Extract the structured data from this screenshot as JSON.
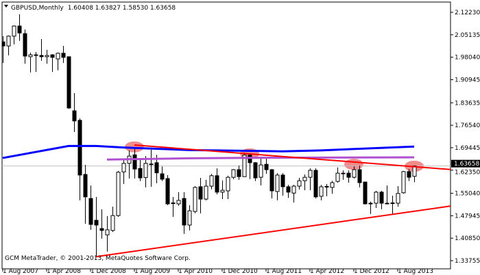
{
  "header": {
    "menu_icon": "triangle-down-icon",
    "symbol": "GBPUSD,Monthly",
    "ohlc_text": "1.60408 1.63827 1.58530 1.63658"
  },
  "watermark": "GCM MetaTrader, © 2001-2013, MetaQuotes Software Corp.",
  "colors": {
    "bull_body": "#ffffff",
    "bear_body": "#000000",
    "ma_line": "#0000ff",
    "level_line": "#b050d0",
    "trend_lines": "#ff0000",
    "highlight": "#f08080",
    "current_price_line": "#c0c0c0",
    "current_price_box": "#000000"
  },
  "chart_data": {
    "type": "candlestick",
    "symbol": "GBPUSD",
    "timeframe": "Monthly",
    "ylim": [
      1.33755,
      2.1223
    ],
    "y_ticks": [
      "2.12230",
      "2.05135",
      "1.98040",
      "1.90945",
      "1.83635",
      "1.76540",
      "1.69445",
      "1.62350",
      "1.55040",
      "1.47945",
      "1.40850",
      "1.33755"
    ],
    "x_ticks": [
      {
        "date": "2007-08",
        "label": "1 Aug 2007"
      },
      {
        "date": "2008-04",
        "label": "1 Apr 2008"
      },
      {
        "date": "2008-12",
        "label": "1 Dec 2008"
      },
      {
        "date": "2009-08",
        "label": "1 Aug 2009"
      },
      {
        "date": "2010-04",
        "label": "1 Apr 2010"
      },
      {
        "date": "2010-12",
        "label": "1 Dec 2010"
      },
      {
        "date": "2011-08",
        "label": "1 Aug 2011"
      },
      {
        "date": "2012-04",
        "label": "1 Apr 2012"
      },
      {
        "date": "2012-12",
        "label": "1 Dec 2012"
      },
      {
        "date": "2013-08",
        "label": "1 Aug 2013"
      }
    ],
    "current_price": "1.63658",
    "candles": [
      [
        "2007-08",
        2.029,
        2.047,
        1.962,
        2.016
      ],
      [
        "2007-09",
        2.016,
        2.049,
        1.986,
        2.047
      ],
      [
        "2007-10",
        2.047,
        2.081,
        2.021,
        2.079
      ],
      [
        "2007-11",
        2.079,
        2.116,
        2.032,
        2.057
      ],
      [
        "2007-12",
        2.055,
        2.068,
        1.96,
        1.984
      ],
      [
        "2008-01",
        1.982,
        1.995,
        1.932,
        1.988
      ],
      [
        "2008-02",
        1.987,
        1.997,
        1.934,
        1.988
      ],
      [
        "2008-03",
        1.986,
        2.038,
        1.969,
        1.982
      ],
      [
        "2008-04",
        1.982,
        2.004,
        1.96,
        1.986
      ],
      [
        "2008-05",
        1.988,
        1.99,
        1.934,
        1.98
      ],
      [
        "2008-06",
        1.975,
        1.995,
        1.939,
        1.993
      ],
      [
        "2008-07",
        1.993,
        2.016,
        1.962,
        1.98
      ],
      [
        "2008-08",
        1.982,
        1.982,
        1.817,
        1.82
      ],
      [
        "2008-09",
        1.811,
        1.867,
        1.744,
        1.779
      ],
      [
        "2008-10",
        1.781,
        1.787,
        1.528,
        1.608
      ],
      [
        "2008-11",
        1.61,
        1.64,
        1.454,
        1.539
      ],
      [
        "2008-12",
        1.534,
        1.575,
        1.435,
        1.452
      ],
      [
        "2009-01",
        1.465,
        1.539,
        1.351,
        1.45
      ],
      [
        "2009-02",
        1.439,
        1.5,
        1.407,
        1.433
      ],
      [
        "2009-03",
        1.419,
        1.478,
        1.366,
        1.435
      ],
      [
        "2009-04",
        1.433,
        1.508,
        1.428,
        1.48
      ],
      [
        "2009-05",
        1.48,
        1.621,
        1.476,
        1.617
      ],
      [
        "2009-06",
        1.618,
        1.657,
        1.58,
        1.645
      ],
      [
        "2009-07",
        1.645,
        1.686,
        1.597,
        1.668
      ],
      [
        "2009-08",
        1.672,
        1.692,
        1.597,
        1.627
      ],
      [
        "2009-09",
        1.629,
        1.661,
        1.589,
        1.599
      ],
      [
        "2009-10",
        1.6,
        1.668,
        1.569,
        1.645
      ],
      [
        "2009-11",
        1.643,
        1.688,
        1.571,
        1.641
      ],
      [
        "2009-12",
        1.647,
        1.672,
        1.582,
        1.615
      ],
      [
        "2010-01",
        1.612,
        1.635,
        1.589,
        1.595
      ],
      [
        "2010-02",
        1.597,
        1.608,
        1.513,
        1.517
      ],
      [
        "2010-03",
        1.518,
        1.539,
        1.476,
        1.52
      ],
      [
        "2010-04",
        1.517,
        1.554,
        1.511,
        1.528
      ],
      [
        "2010-05",
        1.534,
        1.554,
        1.422,
        1.45
      ],
      [
        "2010-06",
        1.45,
        1.513,
        1.433,
        1.495
      ],
      [
        "2010-07",
        1.493,
        1.573,
        1.487,
        1.569
      ],
      [
        "2010-08",
        1.571,
        1.599,
        1.487,
        1.532
      ],
      [
        "2010-09",
        1.532,
        1.593,
        1.528,
        1.573
      ],
      [
        "2010-10",
        1.573,
        1.612,
        1.563,
        1.606
      ],
      [
        "2010-11",
        1.606,
        1.629,
        1.547,
        1.554
      ],
      [
        "2010-12",
        1.554,
        1.591,
        1.532,
        1.56
      ],
      [
        "2011-01",
        1.558,
        1.606,
        1.532,
        1.601
      ],
      [
        "2011-02",
        1.601,
        1.627,
        1.595,
        1.625
      ],
      [
        "2011-03",
        1.625,
        1.638,
        1.593,
        1.603
      ],
      [
        "2011-04",
        1.603,
        1.679,
        1.603,
        1.671
      ],
      [
        "2011-05",
        1.671,
        1.675,
        1.595,
        1.647
      ],
      [
        "2011-06",
        1.647,
        1.649,
        1.589,
        1.599
      ],
      [
        "2011-07",
        1.601,
        1.666,
        1.575,
        1.64
      ],
      [
        "2011-08",
        1.642,
        1.66,
        1.612,
        1.625
      ],
      [
        "2011-09",
        1.625,
        1.627,
        1.534,
        1.558
      ],
      [
        "2011-10",
        1.556,
        1.614,
        1.528,
        1.608
      ],
      [
        "2011-11",
        1.608,
        1.614,
        1.543,
        1.571
      ],
      [
        "2011-12",
        1.571,
        1.577,
        1.536,
        1.554
      ],
      [
        "2012-01",
        1.551,
        1.577,
        1.521,
        1.573
      ],
      [
        "2012-02",
        1.573,
        1.599,
        1.562,
        1.59
      ],
      [
        "2012-03",
        1.59,
        1.61,
        1.56,
        1.601
      ],
      [
        "2012-04",
        1.601,
        1.629,
        1.56,
        1.623
      ],
      [
        "2012-05",
        1.623,
        1.629,
        1.534,
        1.539
      ],
      [
        "2012-06",
        1.541,
        1.577,
        1.528,
        1.571
      ],
      [
        "2012-07",
        1.57,
        1.58,
        1.541,
        1.572
      ],
      [
        "2012-08",
        1.569,
        1.59,
        1.549,
        1.584
      ],
      [
        "2012-09",
        1.588,
        1.632,
        1.584,
        1.614
      ],
      [
        "2012-10",
        1.614,
        1.623,
        1.593,
        1.613
      ],
      [
        "2012-11",
        1.614,
        1.623,
        1.584,
        1.601
      ],
      [
        "2012-12",
        1.601,
        1.636,
        1.597,
        1.625
      ],
      [
        "2013-01",
        1.625,
        1.638,
        1.569,
        1.584
      ],
      [
        "2013-02",
        1.586,
        1.586,
        1.515,
        1.517
      ],
      [
        "2013-03",
        1.517,
        1.524,
        1.485,
        1.519
      ],
      [
        "2013-04",
        1.519,
        1.558,
        1.504,
        1.554
      ],
      [
        "2013-05",
        1.554,
        1.558,
        1.5,
        1.519
      ],
      [
        "2013-06",
        1.519,
        1.575,
        1.519,
        1.518
      ],
      [
        "2013-07",
        1.518,
        1.543,
        1.483,
        1.52
      ],
      [
        "2013-08",
        1.519,
        1.573,
        1.508,
        1.55
      ],
      [
        "2013-09",
        1.552,
        1.621,
        1.549,
        1.619
      ],
      [
        "2013-10",
        1.619,
        1.627,
        1.589,
        1.601
      ],
      [
        "2013-11",
        1.60408,
        1.63827,
        1.5853,
        1.63658
      ]
    ],
    "moving_average": [
      [
        "2007-08",
        1.662
      ],
      [
        "2008-08",
        1.7
      ],
      [
        "2009-01",
        1.7
      ],
      [
        "2009-06",
        1.695
      ],
      [
        "2010-06",
        1.687
      ],
      [
        "2011-11",
        1.683
      ],
      [
        "2012-06",
        1.686
      ],
      [
        "2013-01",
        1.691
      ],
      [
        "2013-11",
        1.698
      ]
    ],
    "level_line": [
      [
        "2009-03",
        1.657
      ],
      [
        "2010-06",
        1.661
      ],
      [
        "2011-11",
        1.663
      ],
      [
        "2013-11",
        1.664
      ]
    ],
    "trend_lines": [
      [
        [
          "2009-08",
          1.703
        ],
        [
          "2014-06",
          1.625
        ]
      ],
      [
        [
          "2009-01",
          1.35
        ],
        [
          "2014-06",
          1.511
        ]
      ]
    ],
    "highlights": [
      [
        "2009-08",
        1.697
      ],
      [
        "2011-05",
        1.675
      ],
      [
        "2012-12",
        1.642
      ],
      [
        "2013-11",
        1.636
      ]
    ]
  }
}
